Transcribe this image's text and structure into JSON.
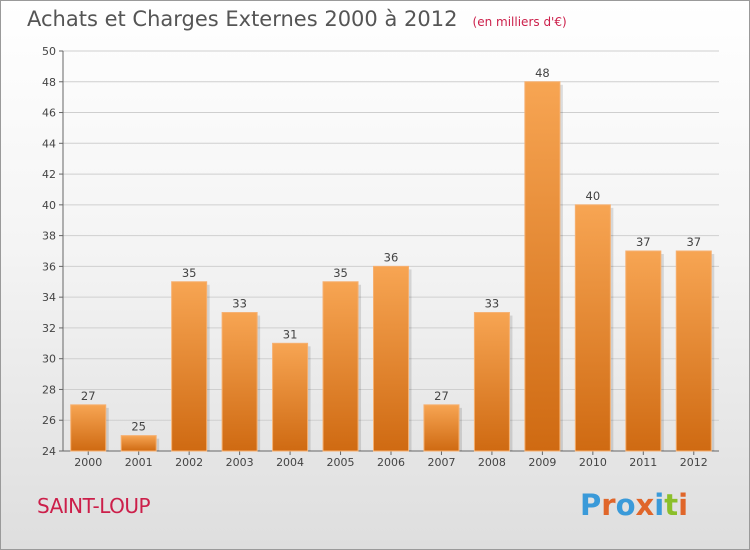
{
  "chart_data": {
    "type": "bar",
    "title": "Achats et Charges Externes 2000 à 2012",
    "unit": "(en milliers d'€)",
    "categories": [
      "2000",
      "2001",
      "2002",
      "2003",
      "2004",
      "2005",
      "2006",
      "2007",
      "2008",
      "2009",
      "2010",
      "2011",
      "2012"
    ],
    "values": [
      27,
      25,
      35,
      33,
      31,
      35,
      36,
      27,
      33,
      48,
      40,
      37,
      37
    ],
    "ylim": [
      24,
      50
    ],
    "yticks": [
      24,
      26,
      28,
      30,
      32,
      34,
      36,
      38,
      40,
      42,
      44,
      46,
      48,
      50
    ],
    "grid": true,
    "bar_color": "#f0923a",
    "data_labels": true
  },
  "footer": {
    "commune": "SAINT-LOUP",
    "brand": "Proxiti",
    "brand_colors": [
      "#3a9ad9",
      "#e0662a",
      "#3a9ad9",
      "#e0662a",
      "#3a9ad9",
      "#8bbf2a",
      "#e0662a"
    ]
  }
}
